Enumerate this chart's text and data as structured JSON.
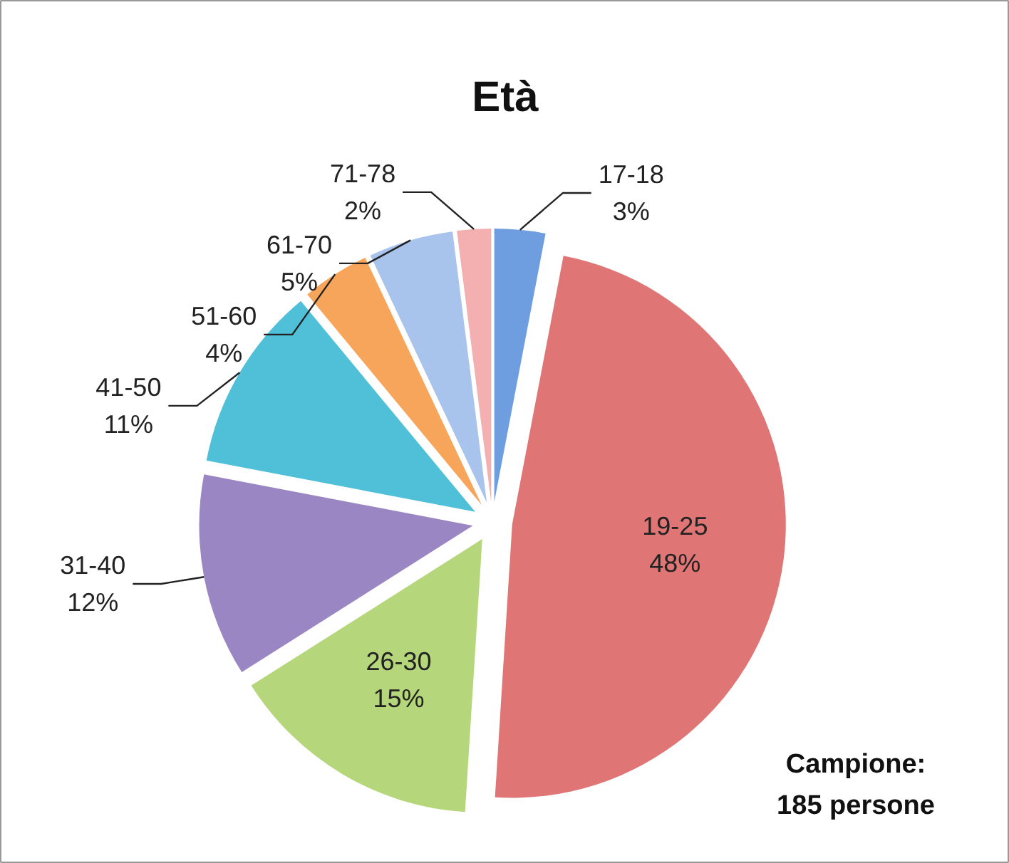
{
  "chart_data": {
    "type": "pie",
    "title": "Età",
    "categories": [
      "17-18",
      "19-25",
      "26-30",
      "31-40",
      "41-50",
      "51-60",
      "61-70",
      "71-78"
    ],
    "values": [
      3,
      48,
      15,
      12,
      11,
      4,
      5,
      2
    ],
    "colors": [
      "#6f9ee0",
      "#e07575",
      "#b5d67a",
      "#9b86c4",
      "#4fc0d8",
      "#f7a55a",
      "#a9c4ec",
      "#f4b0b0"
    ],
    "value_labels": [
      "3%",
      "48%",
      "15%",
      "12%",
      "11%",
      "4%",
      "5%",
      "2%"
    ],
    "annotations": [
      "Campione:\n185 persone"
    ]
  }
}
